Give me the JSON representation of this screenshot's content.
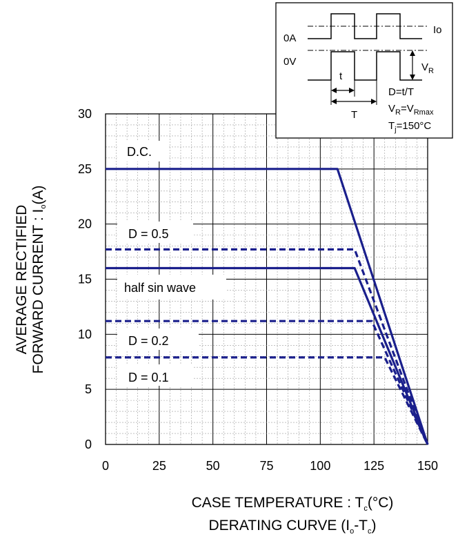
{
  "chart_data": {
    "type": "line",
    "xlabel": "CASE TEMPERATURE : T",
    "xlabel_sub": "c",
    "xlabel_unit": "(°C)",
    "caption_main": "DERATING CURVE (I",
    "caption_sub1": "o",
    "caption_mid": "-T",
    "caption_sub2": "c",
    "caption_end": ")",
    "ylabel_line1": "AVERAGE RECTIFIED",
    "ylabel_line2_main": "FORWARD CURRENT : I",
    "ylabel_line2_sub": "o",
    "ylabel_line2_end": "(A)",
    "xlim": [
      0,
      150
    ],
    "ylim": [
      0,
      30
    ],
    "xticks": [
      "0",
      "25",
      "50",
      "75",
      "100",
      "125",
      "150"
    ],
    "yticks": [
      "0",
      "5",
      "10",
      "15",
      "20",
      "25",
      "30"
    ],
    "grid": true,
    "series": [
      {
        "name": "D.C.",
        "style": "solid",
        "x": [
          0,
          108,
          150
        ],
        "y": [
          25,
          25,
          0
        ]
      },
      {
        "name": "D = 0.5",
        "style": "dashed",
        "x": [
          0,
          116,
          150
        ],
        "y": [
          17.7,
          17.7,
          0
        ]
      },
      {
        "name": "half sin wave",
        "style": "solid",
        "x": [
          0,
          116,
          150
        ],
        "y": [
          16,
          16,
          0
        ]
      },
      {
        "name": "D = 0.2",
        "style": "dashed",
        "x": [
          0,
          124,
          150
        ],
        "y": [
          11.2,
          11.2,
          0
        ]
      },
      {
        "name": "D = 0.1",
        "style": "dashed",
        "x": [
          0,
          130,
          150
        ],
        "y": [
          7.9,
          7.9,
          0
        ]
      }
    ],
    "line_color": "#1a1f8c",
    "inset": {
      "label_0A": "0A",
      "label_0V": "0V",
      "label_Io": "Io",
      "label_t": "t",
      "label_T": "T",
      "label_VR_main": "V",
      "label_VR_sub": "R",
      "eq1": "D=t/T",
      "eq2_main1": "V",
      "eq2_sub1": "R",
      "eq2_mid": "=V",
      "eq2_sub2": "Rmax",
      "eq3_main": "T",
      "eq3_sub": "j",
      "eq3_end": "=150°C"
    }
  }
}
